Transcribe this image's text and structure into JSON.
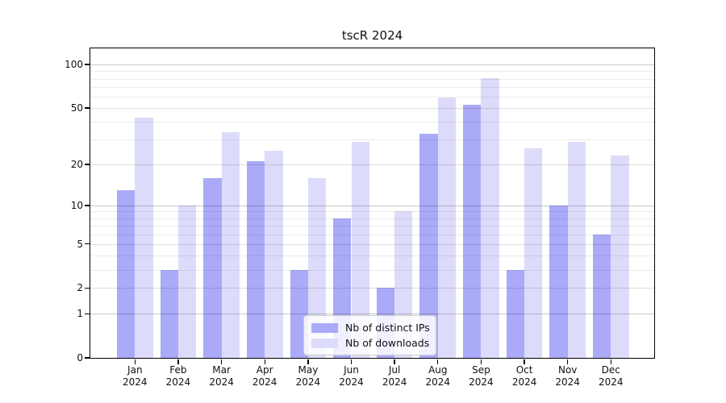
{
  "title": "tscR 2024",
  "chart_data": {
    "type": "bar",
    "title": "tscR 2024",
    "xlabel": "",
    "ylabel": "",
    "categories": [
      "Jan",
      "Feb",
      "Mar",
      "Apr",
      "May",
      "Jun",
      "Jul",
      "Aug",
      "Sep",
      "Oct",
      "Nov",
      "Dec"
    ],
    "year": "2024",
    "series": [
      {
        "name": "Nb of distinct IPs",
        "color": "#aaaaf8",
        "values": [
          13,
          3,
          16,
          21,
          3,
          8,
          2,
          33,
          53,
          3,
          10,
          6
        ]
      },
      {
        "name": "Nb of downloads",
        "color": "#dcdcfa",
        "values": [
          43,
          10,
          34,
          25,
          16,
          29,
          9,
          59,
          81,
          26,
          29,
          23
        ]
      }
    ],
    "yscale": "log1p",
    "yticks": [
      0,
      1,
      2,
      5,
      10,
      20,
      50,
      100
    ],
    "major_gridlines": [
      1,
      10,
      100
    ],
    "minor_gridlines": [
      2,
      3,
      4,
      5,
      6,
      7,
      8,
      9,
      20,
      30,
      40,
      50,
      60,
      70,
      80,
      90
    ],
    "ylim": [
      0,
      130
    ],
    "grid": true,
    "legend_position": "lower center",
    "colors": {
      "axis": "#000000",
      "grid_major": "#c9c9c9",
      "grid_minor": "#ececec"
    }
  }
}
